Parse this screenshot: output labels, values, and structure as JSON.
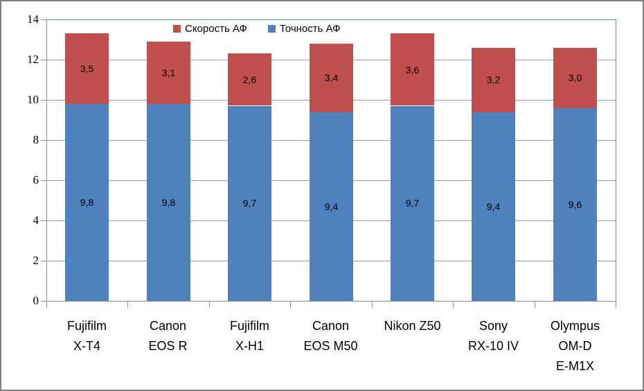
{
  "chart_data": {
    "type": "bar",
    "stacked": true,
    "title": "",
    "xlabel": "",
    "ylabel": "",
    "ylim": [
      0,
      14
    ],
    "ytick_step": 2,
    "yticks": [
      "0",
      "2",
      "4",
      "6",
      "8",
      "10",
      "12",
      "14"
    ],
    "grid": true,
    "legend_position": "top",
    "categories": [
      "Fujifilm X-T4",
      "Canon EOS R",
      "Fujifilm X-H1",
      "Canon EOS M50",
      "Nikon Z50",
      "Sony RX-10 IV",
      "Olympus OM-D E-M1X"
    ],
    "category_label_lines": [
      [
        "Fujifilm",
        "X-T4"
      ],
      [
        "Canon",
        "EOS R"
      ],
      [
        "Fujifilm",
        "X-H1"
      ],
      [
        "Canon",
        "EOS M50"
      ],
      [
        "Nikon Z50"
      ],
      [
        "Sony",
        "RX-10 IV"
      ],
      [
        "Olympus",
        "OM-D",
        "E-M1X"
      ]
    ],
    "series": [
      {
        "name": "Точность АФ",
        "color": "#4F81BD",
        "values": [
          9.8,
          9.8,
          9.7,
          9.4,
          9.7,
          9.4,
          9.6
        ],
        "labels": [
          "9,8",
          "9,8",
          "9,7",
          "9,4",
          "9,7",
          "9,4",
          "9,6"
        ]
      },
      {
        "name": "Скорость АФ",
        "color": "#C0504D",
        "values": [
          3.5,
          3.1,
          2.6,
          3.4,
          3.6,
          3.2,
          3.0
        ],
        "labels": [
          "3,5",
          "3,1",
          "2,6",
          "3,4",
          "3,6",
          "3,2",
          "3,0"
        ]
      }
    ]
  },
  "legend": {
    "items": [
      {
        "label": "Скорость АФ",
        "color": "#C0504D"
      },
      {
        "label": "Точность АФ",
        "color": "#4F81BD"
      }
    ]
  },
  "colors": {
    "accuracy_blue": "#4F81BD",
    "speed_red": "#C0504D",
    "gridline": "#979797",
    "axis": "#8E8E8E",
    "plot_border_blue": "#5589C6",
    "chart_border": "#7F7F7F",
    "background": "#FFFFFF"
  }
}
